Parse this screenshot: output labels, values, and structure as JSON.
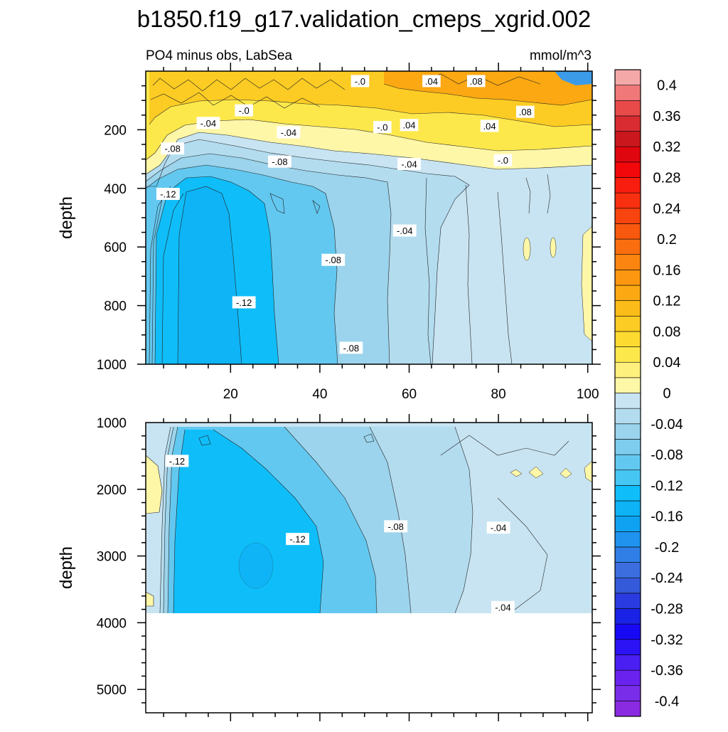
{
  "chart_data": [
    {
      "type": "contour",
      "panel": "upper",
      "title": "b1850.f19_g17.validation_cmeps_xgrid.002",
      "subtitle_left": "PO4 minus obs, LabSea",
      "subtitle_right": "mmol/m^3",
      "ylabel": "depth",
      "xlabel": "",
      "xlim": [
        1,
        101
      ],
      "ylim": [
        1000,
        0
      ],
      "x_ticks": [
        20,
        40,
        60,
        80,
        100
      ],
      "x_tick_labels": [
        "20",
        "40",
        "60",
        "80",
        "100"
      ],
      "y_ticks": [
        200,
        400,
        600,
        800,
        1000
      ],
      "y_tick_labels": [
        "200",
        "400",
        "600",
        "800",
        "1000"
      ],
      "contour_labels": [
        {
          "text": "-.0",
          "x": 49,
          "depth": 35
        },
        {
          "text": ".04",
          "x": 65,
          "depth": 35
        },
        {
          "text": ".08",
          "x": 75,
          "depth": 35
        },
        {
          "text": "-.0",
          "x": 23,
          "depth": 135
        },
        {
          "text": ".08",
          "x": 86,
          "depth": 140
        },
        {
          "text": "-.04",
          "x": 15,
          "depth": 178
        },
        {
          "text": "-.0",
          "x": 54,
          "depth": 192
        },
        {
          "text": ".04",
          "x": 60,
          "depth": 185
        },
        {
          "text": ".04",
          "x": 78,
          "depth": 188
        },
        {
          "text": "-.04",
          "x": 33,
          "depth": 210
        },
        {
          "text": "-.08",
          "x": 7,
          "depth": 265
        },
        {
          "text": "-.08",
          "x": 31,
          "depth": 310
        },
        {
          "text": "-.04",
          "x": 60,
          "depth": 318
        },
        {
          "text": "-.0",
          "x": 81,
          "depth": 305
        },
        {
          "text": "-.12",
          "x": 6,
          "depth": 420
        },
        {
          "text": "-.04",
          "x": 59,
          "depth": 545
        },
        {
          "text": "-.08",
          "x": 43,
          "depth": 645
        },
        {
          "text": "-.12",
          "x": 23,
          "depth": 790
        },
        {
          "text": "-.08",
          "x": 47,
          "depth": 945
        }
      ]
    },
    {
      "type": "contour",
      "panel": "lower",
      "ylabel": "depth",
      "xlim": [
        1,
        101
      ],
      "ylim": [
        5350,
        1000
      ],
      "y_ticks": [
        1000,
        2000,
        3000,
        4000,
        5000
      ],
      "y_tick_labels": [
        "1000",
        "2000",
        "3000",
        "4000",
        "5000"
      ],
      "contour_labels": [
        {
          "text": "-.12",
          "x": 8,
          "depth": 1580
        },
        {
          "text": "-.12",
          "x": 35,
          "depth": 2750
        },
        {
          "text": "-.08",
          "x": 57,
          "depth": 2560
        },
        {
          "text": "-.04",
          "x": 80,
          "depth": 2580
        },
        {
          "text": "-.04",
          "x": 81,
          "depth": 3770
        }
      ]
    }
  ],
  "colorbar": {
    "levels": [
      -0.42,
      -0.4,
      -0.38,
      -0.36,
      -0.34,
      -0.32,
      -0.3,
      -0.28,
      -0.26,
      -0.24,
      -0.22,
      -0.2,
      -0.18,
      -0.16,
      -0.14,
      -0.12,
      -0.1,
      -0.08,
      -0.06,
      -0.04,
      -0.02,
      0,
      0.02,
      0.04,
      0.06,
      0.08,
      0.1,
      0.12,
      0.14,
      0.16,
      0.18,
      0.2,
      0.22,
      0.24,
      0.26,
      0.28,
      0.3,
      0.32,
      0.34,
      0.36,
      0.38,
      0.4,
      0.42
    ],
    "colors": [
      "#8a2be2",
      "#7a2de8",
      "#6a22ee",
      "#4a1ff2",
      "#2b13f5",
      "#1809f5",
      "#1a22e6",
      "#2a3ce0",
      "#355ad9",
      "#3c6ee0",
      "#2f7fe6",
      "#1f93ee",
      "#10a2f2",
      "#0db3f5",
      "#0fbef9",
      "#46c6f3",
      "#63c8f0",
      "#7ecdee",
      "#9bd4ec",
      "#b3dcef",
      "#c8e4f2",
      "#fff7a8",
      "#fef07c",
      "#fde84c",
      "#fdda30",
      "#fccc24",
      "#fbbb18",
      "#fba812",
      "#fb9710",
      "#fb8510",
      "#fa6e10",
      "#f9580f",
      "#f8440f",
      "#f83010",
      "#f81d0e",
      "#f2080a",
      "#e00610",
      "#c9171d",
      "#d82c32",
      "#e84a4a",
      "#f07878",
      "#f5a8a8"
    ],
    "labels": [
      "0.4",
      "0.36",
      "0.32",
      "0.28",
      "0.24",
      "0.2",
      "0.16",
      "0.12",
      "0.08",
      "0.04",
      "0",
      "-0.04",
      "-0.08",
      "-0.12",
      "-0.16",
      "-0.2",
      "-0.24",
      "-0.28",
      "-0.32",
      "-0.36",
      "-0.4"
    ]
  }
}
